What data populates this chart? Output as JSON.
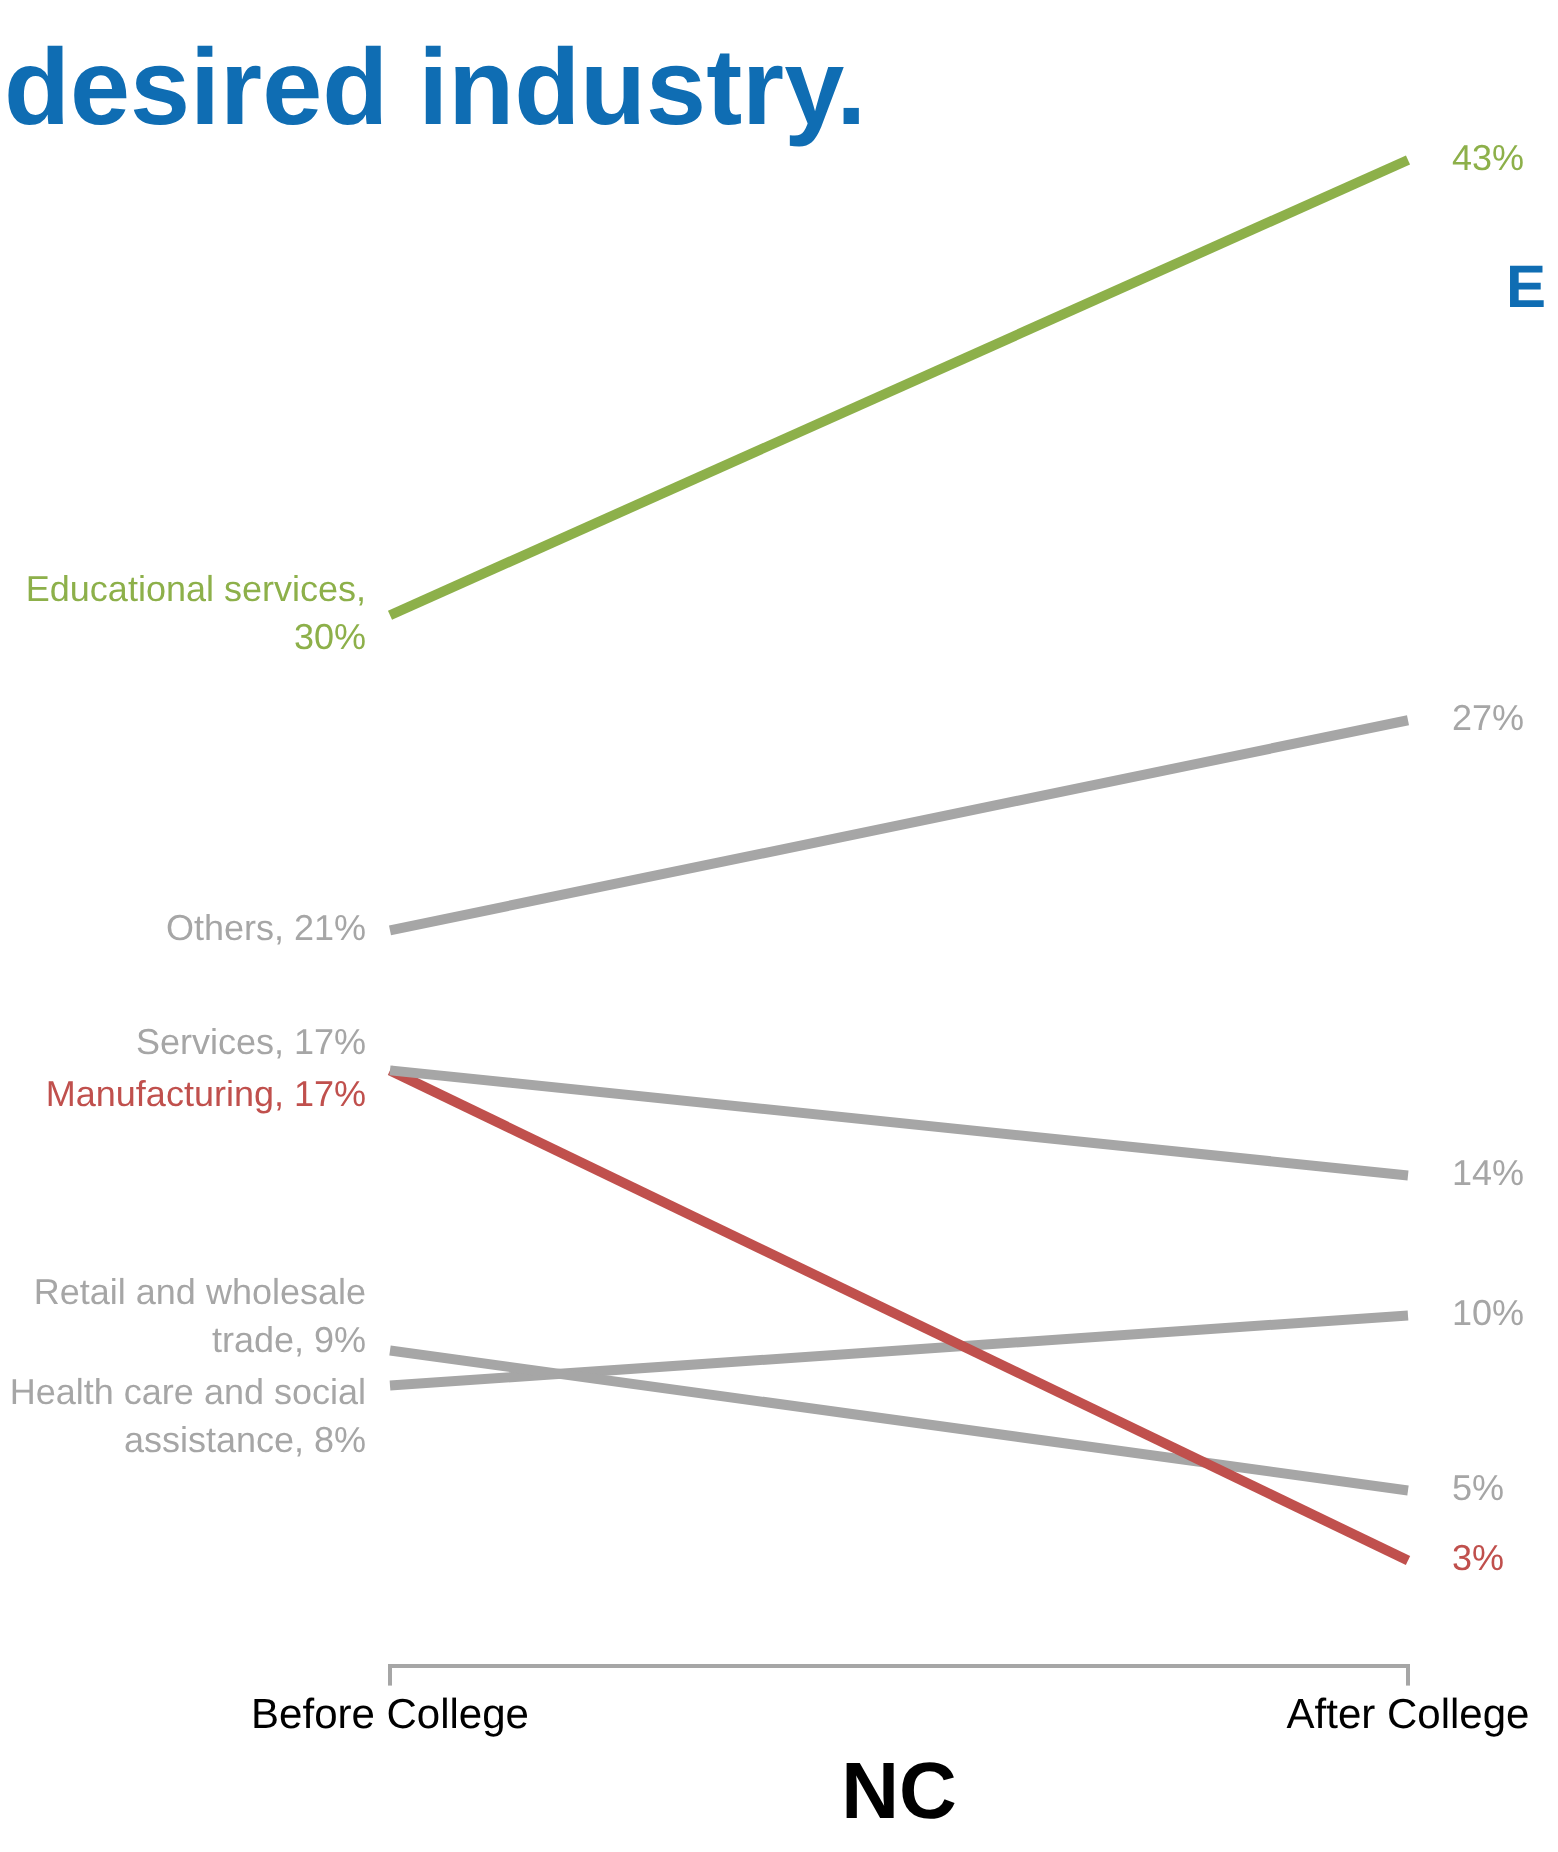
{
  "chart_data": {
    "type": "line",
    "title": "desired industry.",
    "xlabel": "NC",
    "categories": [
      "Before College",
      "After College"
    ],
    "tick_labels": "x",
    "grid": false,
    "legend": false,
    "marker": "none",
    "line_style": "solid",
    "annotations": [
      "E"
    ],
    "series": [
      {
        "color": "#8db04a",
        "values": [
          30,
          43
        ],
        "value_labels": [
          "Educational services, 30%",
          "43%"
        ]
      },
      {
        "color": "#a6a6a6",
        "values": [
          21,
          27
        ],
        "value_labels": [
          "Others, 21%",
          "27%"
        ]
      },
      {
        "color": "#a6a6a6",
        "values": [
          17,
          14
        ],
        "value_labels": [
          "Services, 17%",
          "14%"
        ]
      },
      {
        "color": "#c0504d",
        "values": [
          17,
          3
        ],
        "value_labels": [
          "Manufacturing, 17%",
          "3%"
        ]
      },
      {
        "color": "#a6a6a6",
        "values": [
          9,
          5
        ],
        "value_labels": [
          "Retail and wholesale trade, 9%",
          "5%"
        ]
      },
      {
        "color": "#a6a6a6",
        "values": [
          8,
          10
        ],
        "value_labels": [
          "Health care and social assistance, 8%",
          "10%"
        ]
      }
    ]
  }
}
